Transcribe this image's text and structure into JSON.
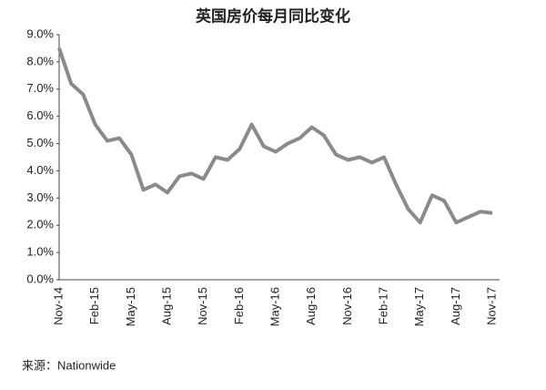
{
  "chart_data": {
    "type": "line",
    "title": "英国房价每月同比变化",
    "source": "来源：Nationwide",
    "categories": [
      "Nov-14",
      null,
      null,
      "Feb-15",
      null,
      null,
      "May-15",
      null,
      null,
      "Aug-15",
      null,
      null,
      "Nov-15",
      null,
      null,
      "Feb-16",
      null,
      null,
      "May-16",
      null,
      null,
      "Aug-16",
      null,
      null,
      "Nov-16",
      null,
      null,
      "Feb-17",
      null,
      null,
      "May-17",
      null,
      null,
      "Aug-17",
      null,
      null,
      "Nov-17"
    ],
    "values": [
      8.5,
      7.2,
      6.8,
      5.7,
      5.1,
      5.2,
      4.6,
      3.3,
      3.5,
      3.2,
      3.8,
      3.9,
      3.7,
      4.5,
      4.4,
      4.8,
      5.7,
      4.9,
      4.7,
      5.0,
      5.2,
      5.6,
      5.3,
      4.6,
      4.4,
      4.5,
      4.3,
      4.5,
      3.5,
      2.6,
      2.1,
      3.1,
      2.9,
      2.1,
      2.3,
      2.5,
      2.45
    ],
    "color": "#8a8a8a",
    "ylim": [
      0,
      9
    ],
    "yticks": [
      {
        "value": 0,
        "label": "0.0%"
      },
      {
        "value": 1,
        "label": "1.0%"
      },
      {
        "value": 2,
        "label": "2.0%"
      },
      {
        "value": 3,
        "label": "3.0%"
      },
      {
        "value": 4,
        "label": "4.0%"
      },
      {
        "value": 5,
        "label": "5.0%"
      },
      {
        "value": 6,
        "label": "6.0%"
      },
      {
        "value": 7,
        "label": "7.0%"
      },
      {
        "value": 8,
        "label": "8.0%"
      },
      {
        "value": 9,
        "label": "9.0%"
      }
    ]
  }
}
